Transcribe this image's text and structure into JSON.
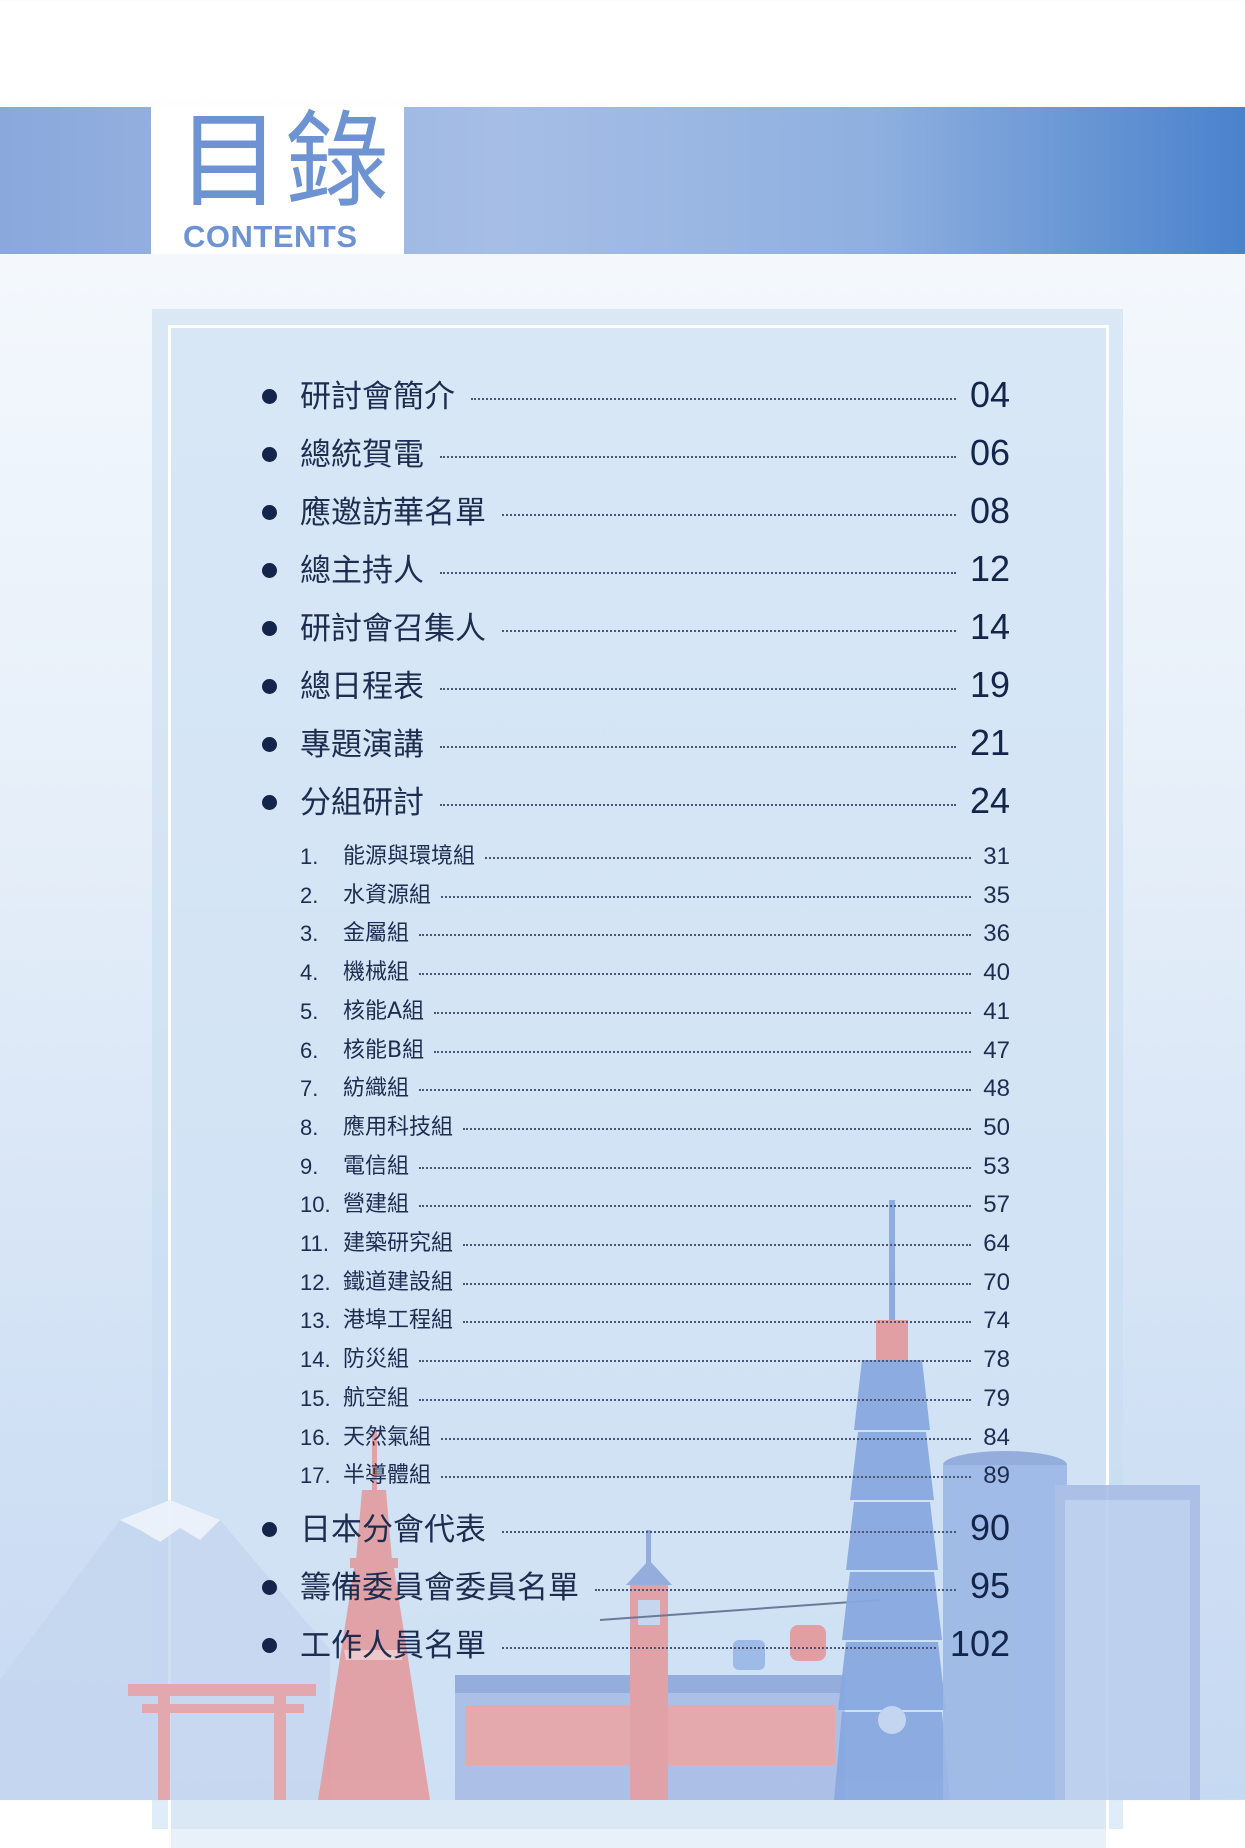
{
  "header": {
    "title_cn": "目錄",
    "title_en": "CONTENTS"
  },
  "toc": {
    "main_before": [
      {
        "label": "研討會簡介",
        "page": "04"
      },
      {
        "label": "總統賀電",
        "page": "06"
      },
      {
        "label": "應邀訪華名單",
        "page": "08"
      },
      {
        "label": "總主持人",
        "page": "12"
      },
      {
        "label": "研討會召集人",
        "page": "14"
      },
      {
        "label": "總日程表",
        "page": "19"
      },
      {
        "label": "專題演講",
        "page": "21"
      },
      {
        "label": "分組研討",
        "page": "24"
      }
    ],
    "sub": [
      {
        "num": "1.",
        "label": "能源與環境組",
        "page": "31"
      },
      {
        "num": "2.",
        "label": "水資源組",
        "page": "35"
      },
      {
        "num": "3.",
        "label": "金屬組",
        "page": "36"
      },
      {
        "num": "4.",
        "label": "機械組",
        "page": "40"
      },
      {
        "num": "5.",
        "label": "核能A組",
        "page": "41"
      },
      {
        "num": "6.",
        "label": "核能B組",
        "page": "47"
      },
      {
        "num": "7.",
        "label": "紡織組",
        "page": "48"
      },
      {
        "num": "8.",
        "label": "應用科技組",
        "page": "50"
      },
      {
        "num": "9.",
        "label": "電信組",
        "page": "53"
      },
      {
        "num": "10.",
        "label": "營建組",
        "page": "57"
      },
      {
        "num": "11.",
        "label": "建築研究組",
        "page": "64"
      },
      {
        "num": "12.",
        "label": "鐵道建設組",
        "page": "70"
      },
      {
        "num": "13.",
        "label": "港埠工程組",
        "page": "74"
      },
      {
        "num": "14.",
        "label": "防災組",
        "page": "78"
      },
      {
        "num": "15.",
        "label": "航空組",
        "page": "79"
      },
      {
        "num": "16.",
        "label": "天然氣組",
        "page": "84"
      },
      {
        "num": "17.",
        "label": "半導體組",
        "page": "89"
      }
    ],
    "main_after": [
      {
        "label": "日本分會代表",
        "page": "90"
      },
      {
        "label": "籌備委員會委員名單",
        "page": "95"
      },
      {
        "label": "工作人員名單",
        "page": "102"
      }
    ]
  },
  "colors": {
    "accent": "#6d93d2",
    "band_dark": "#4a82cc",
    "text": "#1d2d50"
  }
}
